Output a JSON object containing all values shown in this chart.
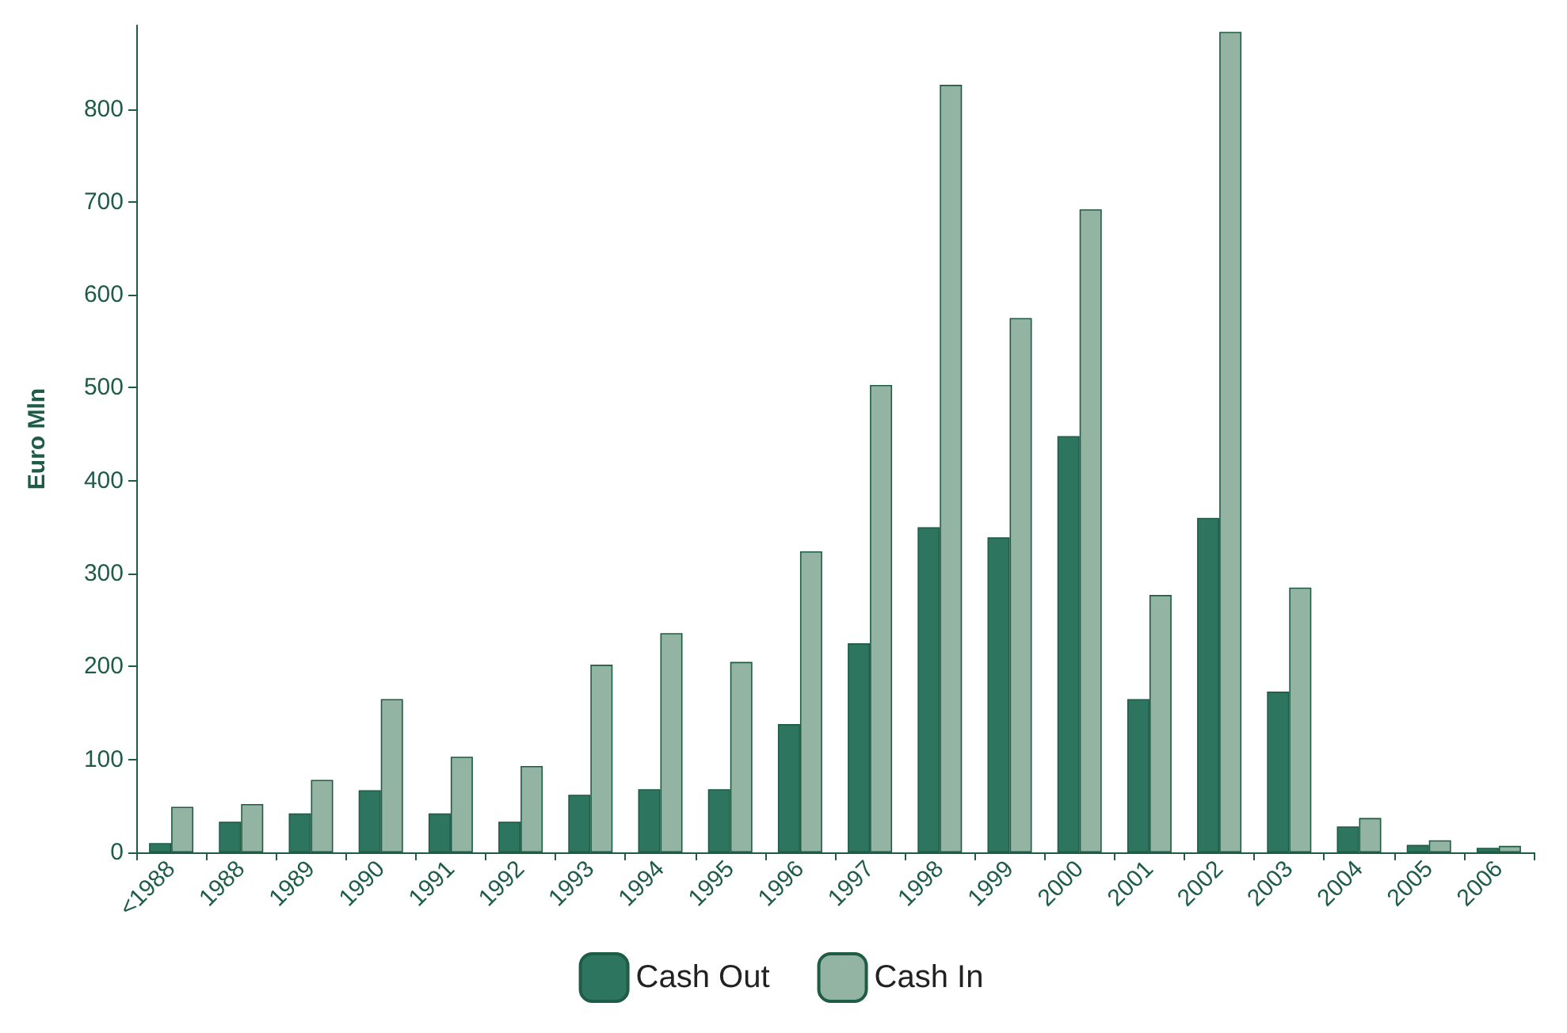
{
  "chart_data": {
    "type": "bar",
    "ylabel": "Euro Mln",
    "categories": [
      "<1988",
      "1988",
      "1989",
      "1990",
      "1991",
      "1992",
      "1993",
      "1994",
      "1995",
      "1996",
      "1997",
      "1998",
      "1999",
      "2000",
      "2001",
      "2002",
      "2003",
      "2004",
      "2005",
      "2006"
    ],
    "series": [
      {
        "name": "Cash Out",
        "color": "#2e7560",
        "values": [
          10,
          33,
          42,
          67,
          42,
          33,
          62,
          68,
          68,
          138,
          225,
          350,
          339,
          448,
          165,
          360,
          173,
          28,
          8,
          5
        ]
      },
      {
        "name": "Cash In",
        "color": "#93b3a3",
        "values": [
          49,
          52,
          78,
          165,
          103,
          93,
          202,
          236,
          205,
          324,
          503,
          826,
          575,
          692,
          277,
          883,
          285,
          37,
          13,
          7
        ]
      }
    ],
    "ylim": [
      0,
      890
    ],
    "yticks": [
      0,
      100,
      200,
      300,
      400,
      500,
      600,
      700,
      800
    ],
    "grid": false,
    "legend": "bottom"
  }
}
